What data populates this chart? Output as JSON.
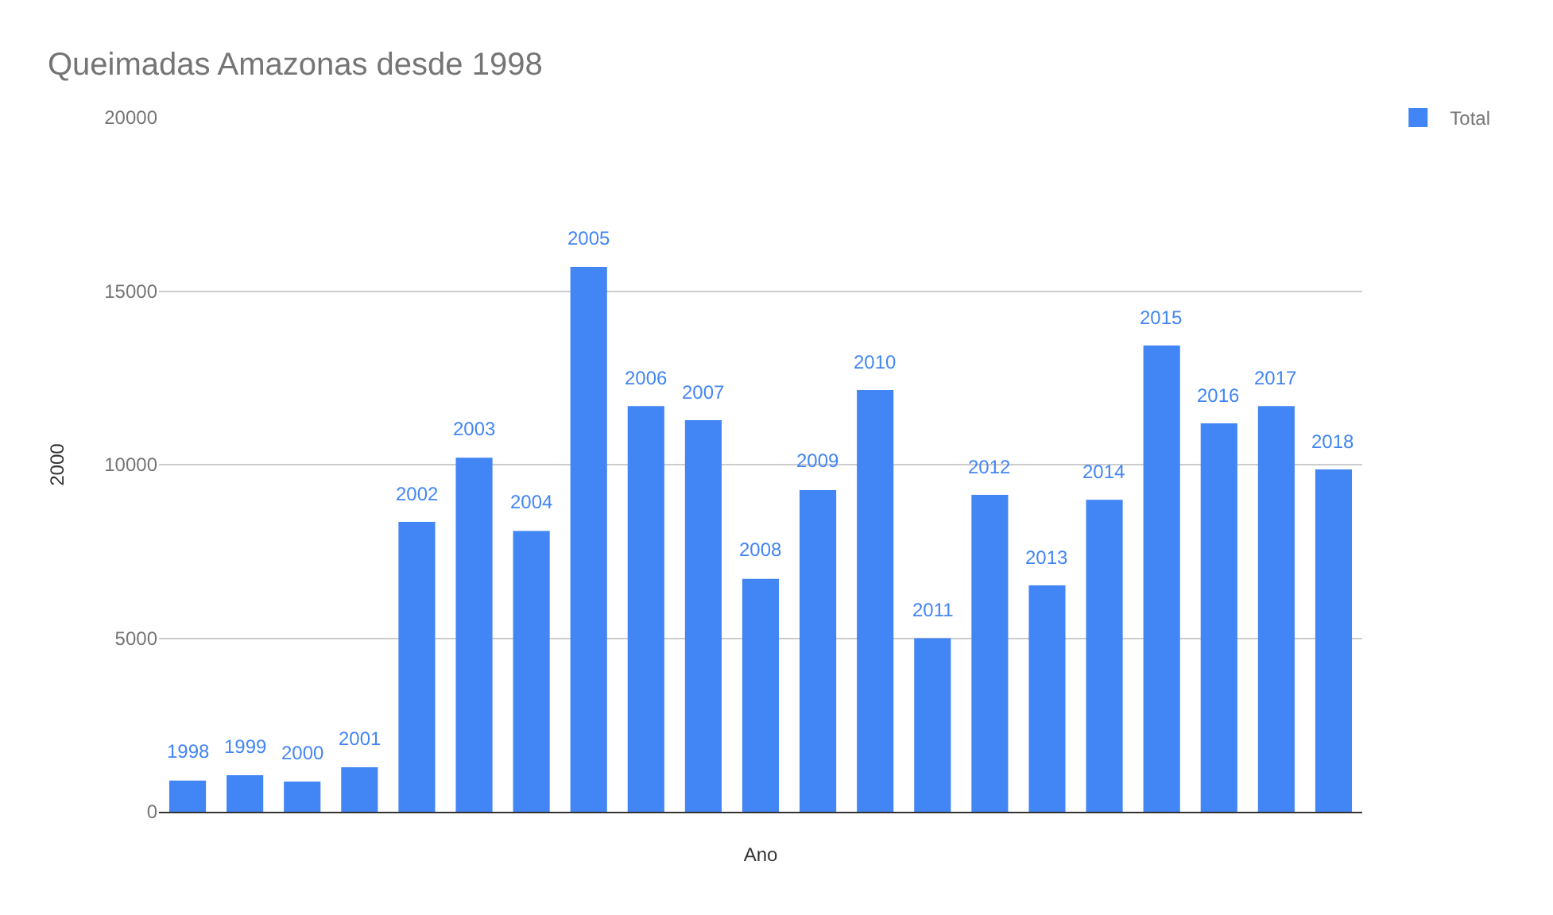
{
  "chart_data": {
    "type": "bar",
    "title": "Queimadas Amazonas desde 1998",
    "xlabel": "Ano",
    "ylabel": "2000",
    "categories": [
      "1998",
      "1999",
      "2000",
      "2001",
      "2002",
      "2003",
      "2004",
      "2005",
      "2006",
      "2007",
      "2008",
      "2009",
      "2010",
      "2011",
      "2012",
      "2013",
      "2014",
      "2015",
      "2016",
      "2017",
      "2018"
    ],
    "series": [
      {
        "name": "Total",
        "color": "#4285f4",
        "values": [
          900,
          1050,
          870,
          1280,
          8350,
          10200,
          8090,
          15700,
          11690,
          11280,
          6710,
          9270,
          12150,
          5000,
          9130,
          6520,
          8990,
          13430,
          11190,
          11690,
          9860
        ]
      }
    ],
    "ylim": [
      0,
      20000
    ],
    "yticks": [
      0,
      5000,
      10000,
      15000,
      20000
    ],
    "grid": "y",
    "legend": "top right",
    "tick_labels": "y"
  }
}
